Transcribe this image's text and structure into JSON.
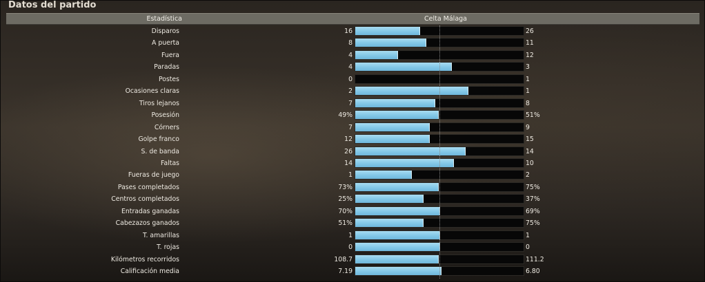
{
  "window": {
    "title": "Datos del partido"
  },
  "header": {
    "stat_label": "Estadística",
    "teams_label": "Celta Málaga"
  },
  "colors": {
    "bar_fill": "#86c9e8",
    "bar_track": "#070707"
  },
  "stats": [
    {
      "label": "Disparos",
      "left": "16",
      "right": "26",
      "home_fraction": 0.38
    },
    {
      "label": "A puerta",
      "left": "8",
      "right": "11",
      "home_fraction": 0.42
    },
    {
      "label": "Fuera",
      "left": "4",
      "right": "12",
      "home_fraction": 0.25
    },
    {
      "label": "Paradas",
      "left": "4",
      "right": "3",
      "home_fraction": 0.57
    },
    {
      "label": "Postes",
      "left": "0",
      "right": "1",
      "home_fraction": 0.0
    },
    {
      "label": "Ocasiones claras",
      "left": "2",
      "right": "1",
      "home_fraction": 0.67
    },
    {
      "label": "Tiros lejanos",
      "left": "7",
      "right": "8",
      "home_fraction": 0.47
    },
    {
      "label": "Posesión",
      "left": "49%",
      "right": "51%",
      "home_fraction": 0.49
    },
    {
      "label": "Córners",
      "left": "7",
      "right": "9",
      "home_fraction": 0.44
    },
    {
      "label": "Golpe franco",
      "left": "12",
      "right": "15",
      "home_fraction": 0.44
    },
    {
      "label": "S. de banda",
      "left": "26",
      "right": "14",
      "home_fraction": 0.65
    },
    {
      "label": "Faltas",
      "left": "14",
      "right": "10",
      "home_fraction": 0.58
    },
    {
      "label": "Fueras de juego",
      "left": "1",
      "right": "2",
      "home_fraction": 0.33
    },
    {
      "label": "Pases completados",
      "left": "73%",
      "right": "75%",
      "home_fraction": 0.49
    },
    {
      "label": "Centros completados",
      "left": "25%",
      "right": "37%",
      "home_fraction": 0.4
    },
    {
      "label": "Entradas ganadas",
      "left": "70%",
      "right": "69%",
      "home_fraction": 0.5
    },
    {
      "label": "Cabezazos ganados",
      "left": "51%",
      "right": "75%",
      "home_fraction": 0.4
    },
    {
      "label": "T. amarillas",
      "left": "1",
      "right": "1",
      "home_fraction": 0.5
    },
    {
      "label": "T. rojas",
      "left": "0",
      "right": "0",
      "home_fraction": 0.5
    },
    {
      "label": "Kilómetros recorridos",
      "left": "108.7",
      "right": "111.2",
      "home_fraction": 0.49
    },
    {
      "label": "Calificación media",
      "left": "7.19",
      "right": "6.80",
      "home_fraction": 0.51
    }
  ]
}
